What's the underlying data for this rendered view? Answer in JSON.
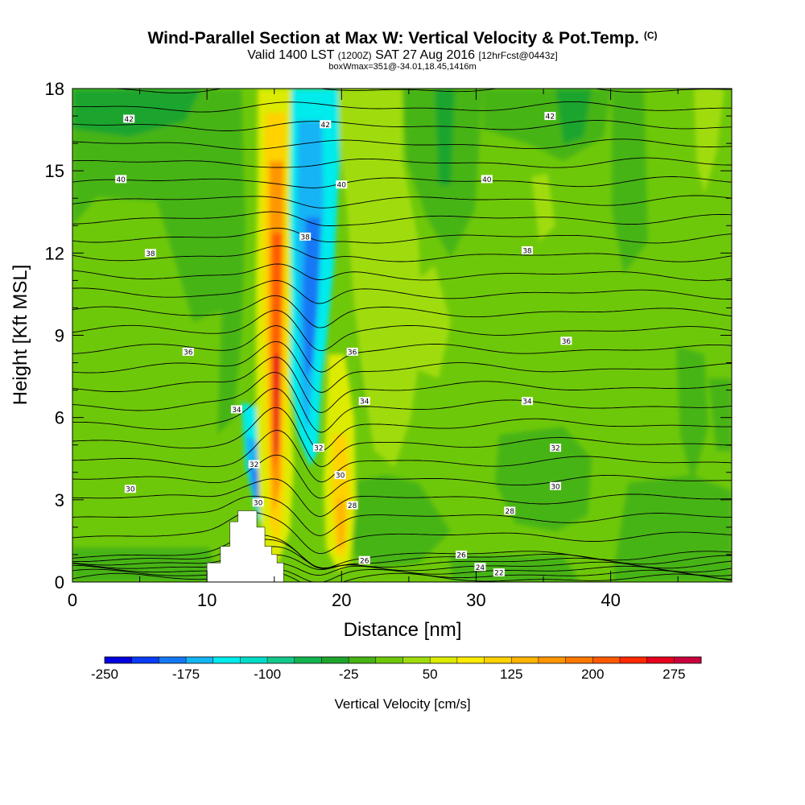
{
  "header": {
    "title_main": "Wind-Parallel Section at Max W: Vertical Velocity & Pot.Temp.",
    "title_unit": "(C)",
    "valid_prefix": "Valid 1400 LST",
    "valid_utc": "(1200Z)",
    "valid_date": "SAT 27 Aug 2016",
    "forecast": "[12hrFcst@0443z]",
    "box_info": "boxWmax=351@-34.01,18.45,1416m"
  },
  "chart_data": {
    "type": "heatmap",
    "xlabel": "Distance [nm]",
    "ylabel": "Height [Kft MSL]",
    "xlim": [
      0,
      49
    ],
    "ylim": [
      0,
      18
    ],
    "x_ticks": [
      "0",
      "10",
      "20",
      "30",
      "40"
    ],
    "y_ticks": [
      "0",
      "3",
      "6",
      "9",
      "12",
      "15",
      "18"
    ],
    "colorbar": {
      "title": "Vertical Velocity [cm/s]",
      "labels": [
        "-250",
        "-175",
        "-100",
        "-25",
        "50",
        "125",
        "200",
        "275"
      ],
      "min": -250,
      "max": 300,
      "step": 25,
      "colors": [
        "#0000e0",
        "#0a3cf5",
        "#1478f5",
        "#14b4f5",
        "#00ebeb",
        "#00dcc8",
        "#14c88c",
        "#14b450",
        "#1ea52d",
        "#46b414",
        "#6ec80a",
        "#a0dc0a",
        "#dceb00",
        "#ffeb00",
        "#ffd200",
        "#ffb400",
        "#ff9600",
        "#ff7800",
        "#ff5a00",
        "#ff2800",
        "#e6001e",
        "#c8003c"
      ]
    },
    "vertical_velocity_features": [
      {
        "type": "updraft",
        "x": 16.0,
        "y": [
          0.3,
          18
        ],
        "peak_cm_s": 275
      },
      {
        "type": "downdraft",
        "x_lower": 13.8,
        "x_upper": 17.3,
        "y": [
          1.0,
          18
        ],
        "min_cm_s": -225
      },
      {
        "type": "updraft",
        "x": 19.9,
        "y": [
          0.5,
          7.5
        ],
        "peak_cm_s": 150
      },
      {
        "type": "updraft",
        "x": 20.2,
        "y": [
          8,
          18
        ],
        "peak_cm_s": 50
      }
    ],
    "terrain_profile": [
      [
        10,
        0
      ],
      [
        10,
        0.7
      ],
      [
        11,
        0.7
      ],
      [
        11,
        1.3
      ],
      [
        11.7,
        1.3
      ],
      [
        11.7,
        2.2
      ],
      [
        12.3,
        2.2
      ],
      [
        12.3,
        2.6
      ],
      [
        13.7,
        2.6
      ],
      [
        13.7,
        2.0
      ],
      [
        14.3,
        2.0
      ],
      [
        14.3,
        1.3
      ],
      [
        14.8,
        1.3
      ],
      [
        14.8,
        1.0
      ],
      [
        15.2,
        1.0
      ],
      [
        15.2,
        0.7
      ],
      [
        15.7,
        0.7
      ],
      [
        15.7,
        0
      ]
    ],
    "isentrope_labels": [
      {
        "value": "42",
        "x": 4.2,
        "y": 16.9
      },
      {
        "value": "42",
        "x": 18.8,
        "y": 16.7
      },
      {
        "value": "42",
        "x": 35.5,
        "y": 17.0
      },
      {
        "value": "40",
        "x": 3.6,
        "y": 14.7
      },
      {
        "value": "40",
        "x": 20.0,
        "y": 14.5
      },
      {
        "value": "40",
        "x": 30.8,
        "y": 14.7
      },
      {
        "value": "38",
        "x": 5.8,
        "y": 12.0
      },
      {
        "value": "38",
        "x": 17.3,
        "y": 12.6
      },
      {
        "value": "38",
        "x": 33.8,
        "y": 12.1
      },
      {
        "value": "36",
        "x": 8.6,
        "y": 8.4
      },
      {
        "value": "36",
        "x": 20.8,
        "y": 8.4
      },
      {
        "value": "36",
        "x": 36.7,
        "y": 8.8
      },
      {
        "value": "34",
        "x": 12.2,
        "y": 6.3
      },
      {
        "value": "34",
        "x": 21.7,
        "y": 6.6
      },
      {
        "value": "34",
        "x": 33.8,
        "y": 6.6
      },
      {
        "value": "32",
        "x": 13.5,
        "y": 4.3
      },
      {
        "value": "32",
        "x": 18.3,
        "y": 4.9
      },
      {
        "value": "32",
        "x": 35.9,
        "y": 4.9
      },
      {
        "value": "30",
        "x": 4.3,
        "y": 3.4
      },
      {
        "value": "30",
        "x": 13.8,
        "y": 2.9
      },
      {
        "value": "30",
        "x": 19.9,
        "y": 3.9
      },
      {
        "value": "30",
        "x": 35.9,
        "y": 3.5
      },
      {
        "value": "28",
        "x": 20.8,
        "y": 2.8
      },
      {
        "value": "28",
        "x": 32.5,
        "y": 2.6
      },
      {
        "value": "26",
        "x": 21.7,
        "y": 0.8
      },
      {
        "value": "26",
        "x": 28.9,
        "y": 1.0
      },
      {
        "value": "24",
        "x": 30.3,
        "y": 0.55
      },
      {
        "value": "22",
        "x": 31.7,
        "y": 0.35
      }
    ]
  }
}
